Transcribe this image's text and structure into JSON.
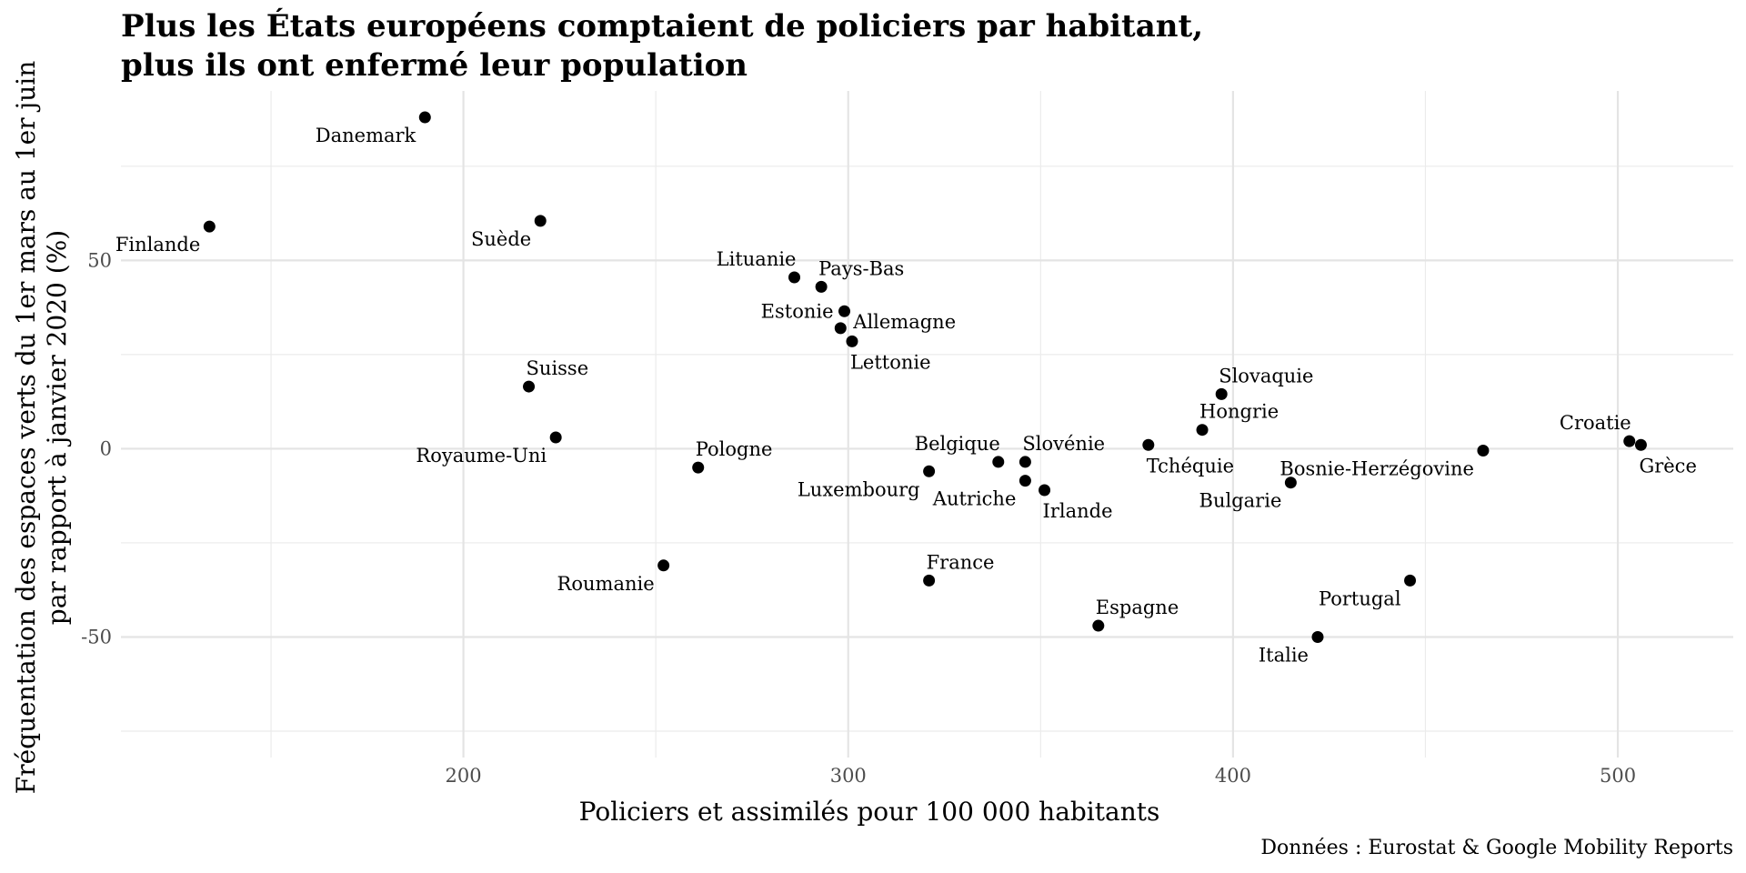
{
  "chart_data": {
    "type": "scatter",
    "title": [
      "Plus les États européens comptaient de policiers par habitant,",
      "plus ils ont enfermé leur population"
    ],
    "xlabel": "Policiers et assimilés pour 100 000 habitants",
    "ylabel": [
      "Fréquentation des espaces verts du 1er mars au 1er juin",
      "par rapport à janvier 2020 (%)"
    ],
    "caption": "Données : Eurostat & Google Mobility Reports",
    "xlim": [
      111,
      530
    ],
    "ylim": [
      -82,
      95
    ],
    "x_ticks": [
      200,
      300,
      400,
      500
    ],
    "y_ticks": [
      -50,
      0,
      50
    ],
    "x_minor": [
      150,
      250,
      350,
      450
    ],
    "y_minor": [
      -75,
      -25,
      25,
      75
    ],
    "grid": true,
    "marker_color": "#000000",
    "points": [
      {
        "label": "Danemark",
        "x": 190,
        "y": 88,
        "pos": "below-left"
      },
      {
        "label": "Finlande",
        "x": 134,
        "y": 59,
        "pos": "below-left"
      },
      {
        "label": "Suède",
        "x": 220,
        "y": 60.5,
        "pos": "below-left"
      },
      {
        "label": "Lituanie",
        "x": 286,
        "y": 45.5,
        "pos": "above-left"
      },
      {
        "label": "Pays-Bas",
        "x": 293,
        "y": 43,
        "pos": "above-right"
      },
      {
        "label": "Estonie",
        "x": 299,
        "y": 36.5,
        "pos": "left"
      },
      {
        "label": "Allemagne",
        "x": 298,
        "y": 32,
        "pos": "right"
      },
      {
        "label": "Lettonie",
        "x": 301,
        "y": 28.5,
        "pos": "below-right"
      },
      {
        "label": "Suisse",
        "x": 217,
        "y": 16.5,
        "pos": "above-right"
      },
      {
        "label": "Royaume-Uni",
        "x": 224,
        "y": 3,
        "pos": "below-left"
      },
      {
        "label": "Pologne",
        "x": 261,
        "y": -5,
        "pos": "above-right"
      },
      {
        "label": "Roumanie",
        "x": 252,
        "y": -31,
        "pos": "below-left"
      },
      {
        "label": "Belgique",
        "x": 339,
        "y": -3.5,
        "pos": "above-left"
      },
      {
        "label": "Slovénie",
        "x": 346,
        "y": -3.5,
        "pos": "above-right"
      },
      {
        "label": "Luxembourg",
        "x": 321,
        "y": -6,
        "pos": "below-left"
      },
      {
        "label": "Autriche",
        "x": 346,
        "y": -8.5,
        "pos": "below-left"
      },
      {
        "label": "Irlande",
        "x": 351,
        "y": -11,
        "pos": "below-right"
      },
      {
        "label": "France",
        "x": 321,
        "y": -35,
        "pos": "above-right"
      },
      {
        "label": "Espagne",
        "x": 365,
        "y": -47,
        "pos": "above-right"
      },
      {
        "label": "Slovaquie",
        "x": 397,
        "y": 14.5,
        "pos": "above-right"
      },
      {
        "label": "Hongrie",
        "x": 392,
        "y": 5,
        "pos": "above-right"
      },
      {
        "label": "Tchéquie",
        "x": 378,
        "y": 1,
        "pos": "below-right"
      },
      {
        "label": "Bulgarie",
        "x": 415,
        "y": -9,
        "pos": "below-left"
      },
      {
        "label": "Italie",
        "x": 422,
        "y": -50,
        "pos": "below-left"
      },
      {
        "label": "Portugal",
        "x": 446,
        "y": -35,
        "pos": "below-left"
      },
      {
        "label": "Bosnie-Herzégovine",
        "x": 465,
        "y": -0.5,
        "pos": "below-left"
      },
      {
        "label": "Croatie",
        "x": 503,
        "y": 2,
        "pos": "above-left"
      },
      {
        "label": "Grèce",
        "x": 506,
        "y": 1,
        "pos": "below-right"
      }
    ]
  }
}
